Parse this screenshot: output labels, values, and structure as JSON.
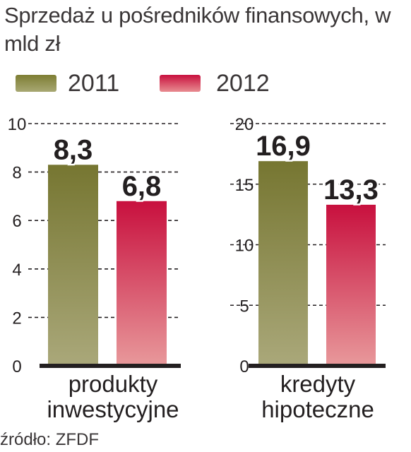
{
  "title": "Sprzedaż u pośredników finansowych, w mld zł",
  "legend": [
    {
      "label": "2011",
      "color": "#7d7d33"
    },
    {
      "label": "2012",
      "color": "#c8103e"
    }
  ],
  "colors": {
    "series_2011_top": "#767631",
    "series_2011_bottom": "#aaa87a",
    "series_2012_top": "#c8103e",
    "series_2012_bottom": "#e8999b",
    "grid": "#231f20",
    "baseline": "#231f20",
    "text": "#231f20"
  },
  "chart_data": [
    {
      "type": "bar",
      "categories": [
        "produkty inwestycyjne"
      ],
      "category_lines": [
        "produkty",
        "inwestycyjne"
      ],
      "series": [
        {
          "name": "2011",
          "values": [
            8.3
          ]
        },
        {
          "name": "2012",
          "values": [
            6.8
          ]
        }
      ],
      "data_labels": [
        "8,3",
        "6,8"
      ],
      "ylim": [
        0,
        10
      ],
      "yticks": [
        0,
        2,
        4,
        6,
        8,
        10
      ],
      "grid": true,
      "grid_style": "dashed"
    },
    {
      "type": "bar",
      "categories": [
        "kredyty hipoteczne"
      ],
      "category_lines": [
        "kredyty",
        "hipoteczne"
      ],
      "series": [
        {
          "name": "2011",
          "values": [
            16.9
          ]
        },
        {
          "name": "2012",
          "values": [
            13.3
          ]
        }
      ],
      "data_labels": [
        "16,9",
        "13,3"
      ],
      "ylim": [
        0,
        20
      ],
      "yticks": [
        0,
        5,
        10,
        15,
        20
      ],
      "grid": true,
      "grid_style": "dashed"
    }
  ],
  "source": "źródło: ZFDF"
}
